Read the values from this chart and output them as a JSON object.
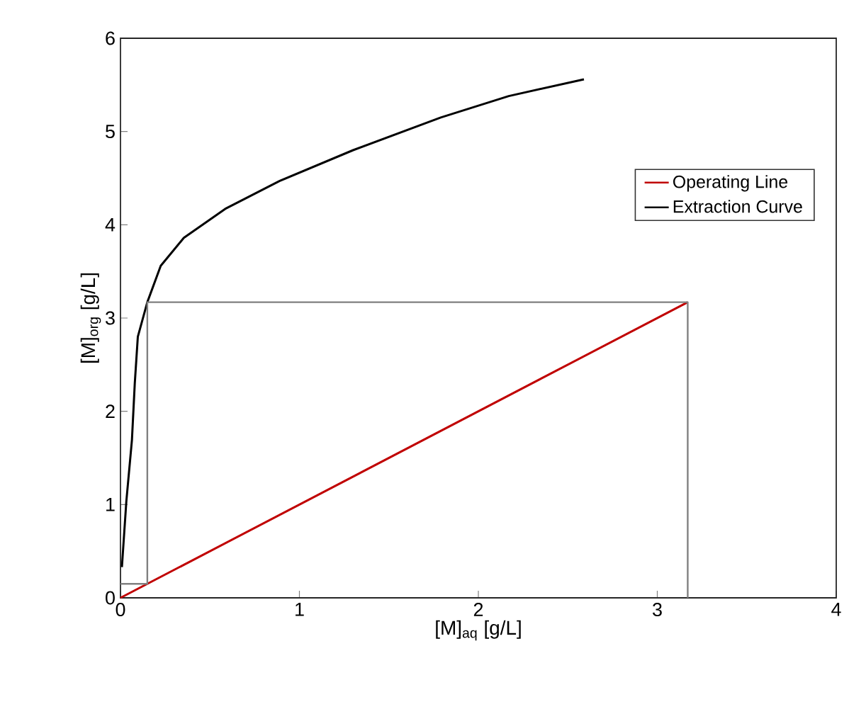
{
  "chart_data": {
    "type": "line",
    "xlabel": "[M]$_{aq}$ [g/L]",
    "ylabel": "[M]$_{org}$ [g/L]",
    "xlim": [
      0,
      4
    ],
    "ylim": [
      0,
      6
    ],
    "xticks": [
      0,
      1,
      2,
      3,
      4
    ],
    "yticks": [
      0,
      1,
      2,
      3,
      4,
      5,
      6
    ],
    "grid": false,
    "legend": "right",
    "marker": "none",
    "line_style": "solid",
    "series": [
      {
        "name": "Operating Line",
        "color": "#c00000",
        "x": [
          0,
          3.17
        ],
        "values": [
          0,
          3.17
        ]
      },
      {
        "name": "Extraction Curve",
        "color": "#000000",
        "x": [
          0.008,
          0.033,
          0.064,
          0.08,
          0.097,
          0.15,
          0.225,
          0.354,
          0.585,
          0.89,
          1.3,
          1.79,
          2.17,
          2.59
        ],
        "values": [
          0.33,
          1.04,
          1.69,
          2.3,
          2.8,
          3.17,
          3.56,
          3.86,
          4.17,
          4.47,
          4.8,
          5.15,
          5.38,
          5.56
        ]
      },
      {
        "color": "#808080",
        "x": [
          3.17,
          3.17,
          0.15,
          0.15,
          0
        ],
        "values": [
          0,
          3.17,
          3.17,
          0.15,
          0.15
        ]
      }
    ]
  }
}
